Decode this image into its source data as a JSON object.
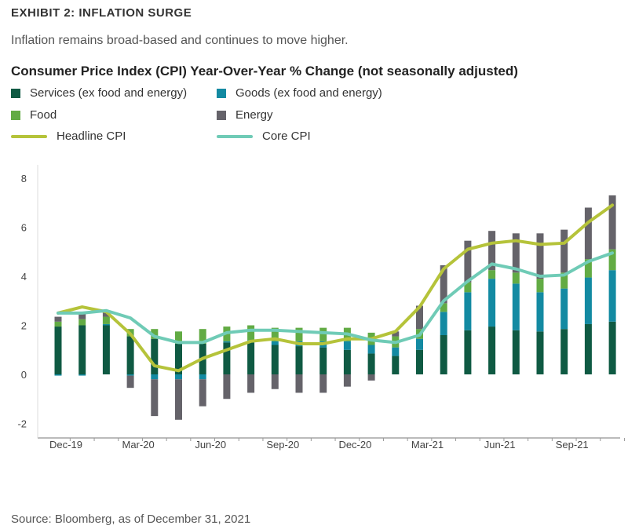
{
  "header": {
    "exhibit": "EXHIBIT 2: INFLATION SURGE",
    "subtitle": "Inflation remains broad-based and continues to move higher."
  },
  "source": "Source: Bloomberg, as of December 31, 2021",
  "colors": {
    "services": "#0f5a43",
    "goods": "#138aa2",
    "food": "#62ab44",
    "energy": "#65636a",
    "headline": "#b5c33a",
    "core": "#6fcbb6"
  },
  "chart_data": {
    "type": "bar",
    "title": "Consumer Price Index (CPI) Year-Over-Year % Change (not seasonally adjusted)",
    "xlabel": "",
    "ylabel": "",
    "ylim": [
      -2,
      8
    ],
    "yticks": [
      -2,
      0,
      2,
      4,
      6,
      8
    ],
    "categories": [
      "Dec-19",
      "Jan-20",
      "Feb-20",
      "Mar-20",
      "Apr-20",
      "May-20",
      "Jun-20",
      "Jul-20",
      "Aug-20",
      "Sep-20",
      "Oct-20",
      "Nov-20",
      "Dec-20",
      "Jan-21",
      "Feb-21",
      "Mar-21",
      "Apr-21",
      "May-21",
      "Jun-21",
      "Jul-21",
      "Aug-21",
      "Sep-21",
      "Oct-21",
      "Nov-21"
    ],
    "xtick_labels": [
      "Dec-19",
      "",
      "",
      "Mar-20",
      "",
      "",
      "Jun-20",
      "",
      "",
      "Sep-20",
      "",
      "",
      "Dec-20",
      "",
      "",
      "Mar-21",
      "",
      "",
      "Jun-21",
      "",
      "",
      "Sep-21",
      "",
      ""
    ],
    "legend": {
      "services": "Services (ex food and energy)",
      "goods": "Goods (ex food and energy)",
      "food": "Food",
      "energy": "Energy",
      "headline": "Headline CPI",
      "core": "Core CPI"
    },
    "series": [
      {
        "name": "Services (ex food and energy)",
        "key": "services",
        "kind": "bar",
        "values": [
          1.95,
          2.0,
          2.0,
          1.55,
          1.45,
          1.25,
          1.25,
          1.3,
          1.3,
          1.2,
          1.15,
          1.1,
          1.0,
          0.85,
          0.75,
          1.0,
          1.6,
          1.8,
          1.95,
          1.8,
          1.75,
          1.85,
          2.05,
          2.15
        ]
      },
      {
        "name": "Goods (ex food and energy)",
        "key": "goods",
        "kind": "bar",
        "values": [
          -0.05,
          -0.05,
          0.05,
          -0.05,
          -0.2,
          -0.2,
          -0.2,
          0.05,
          0.1,
          0.15,
          0.2,
          0.25,
          0.35,
          0.35,
          0.35,
          0.45,
          0.95,
          1.55,
          1.95,
          1.9,
          1.6,
          1.65,
          1.9,
          2.1
        ]
      },
      {
        "name": "Food",
        "key": "food",
        "kind": "bar",
        "values": [
          0.2,
          0.25,
          0.3,
          0.3,
          0.4,
          0.5,
          0.6,
          0.6,
          0.6,
          0.55,
          0.55,
          0.55,
          0.55,
          0.5,
          0.45,
          0.4,
          0.35,
          0.4,
          0.35,
          0.45,
          0.55,
          0.65,
          0.75,
          0.85
        ]
      },
      {
        "name": "Energy",
        "key": "energy",
        "kind": "bar",
        "values": [
          0.2,
          0.3,
          0.2,
          -0.5,
          -1.5,
          -1.65,
          -1.1,
          -1.0,
          -0.75,
          -0.6,
          -0.75,
          -0.75,
          -0.5,
          -0.25,
          0.2,
          0.95,
          1.55,
          1.7,
          1.6,
          1.6,
          1.85,
          1.75,
          2.1,
          2.2
        ]
      },
      {
        "name": "Headline CPI",
        "key": "headline",
        "kind": "line",
        "values": [
          2.5,
          2.75,
          2.55,
          1.65,
          0.35,
          0.15,
          0.65,
          1.0,
          1.35,
          1.45,
          1.25,
          1.25,
          1.45,
          1.45,
          1.75,
          2.75,
          4.3,
          5.1,
          5.35,
          5.45,
          5.3,
          5.35,
          6.2,
          6.9
        ]
      },
      {
        "name": "Core CPI",
        "key": "core",
        "kind": "line",
        "values": [
          2.5,
          2.5,
          2.6,
          2.3,
          1.55,
          1.3,
          1.3,
          1.7,
          1.8,
          1.8,
          1.75,
          1.7,
          1.65,
          1.4,
          1.3,
          1.6,
          3.0,
          3.8,
          4.5,
          4.3,
          4.0,
          4.05,
          4.6,
          4.95
        ]
      }
    ]
  }
}
